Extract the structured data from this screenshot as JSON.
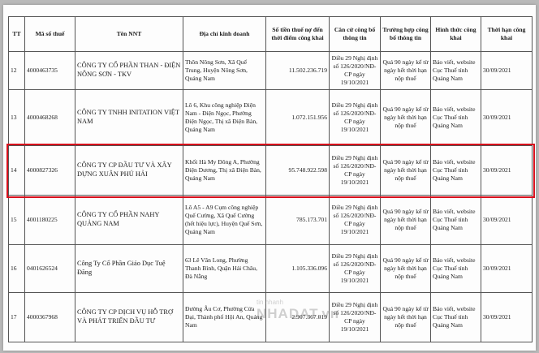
{
  "table": {
    "header": [
      "TT",
      "Mã số thuế",
      "Tên NNT",
      "Địa chỉ kinh doanh",
      "Số tiền thuế nợ đến thời điểm công khai",
      "Căn cứ công bố thông tin",
      "Trường hợp công bố thông tin",
      "Hình thức công khai",
      "Thời hạn công khai"
    ],
    "rows": [
      [
        "12",
        "4000463735",
        "CÔNG TY CỔ PHẦN THAN - ĐIỆN NÔNG SƠN - TKV",
        "Thôn Nông Sơn, Xã Quế Trung, Huyện Nông Sơn, Quảng Nam",
        "11.502.236.719",
        "Điều 29 Nghị định số 126/2020/NĐ-CP ngày 19/10/2021",
        "Quá 90 ngày kể từ ngày hết thời hạn nộp thuế",
        "Báo viết, website Cục Thuế tỉnh Quảng Nam",
        "30/09/2021"
      ],
      [
        "13",
        "4000468268",
        "CÔNG TY TNHH INITATION VIỆT NAM",
        "Lô 6, Khu công nghiệp Điện Nam - Điện Ngọc, Phường Điện Ngọc, Thị xã Điện Bàn, Quảng Nam",
        "1.072.151.956",
        "Điều 29 Nghị định số 126/2020/NĐ-CP ngày 19/10/2021",
        "Quá 90 ngày kể từ ngày hết thời hạn nộp thuế",
        "Báo viết, website Cục Thuế tỉnh Quảng Nam",
        "30/09/2021"
      ],
      [
        "14",
        "4000827326",
        "CÔNG TY CP ĐẦU TƯ VÀ XÂY DỰNG XUÂN PHÚ HẢI",
        "Khối Hà My Đông A, Phường Điện Dương, Thị xã Điện Bàn, Quảng Nam",
        "95.748.922.598",
        "Điều 29 Nghị định số 126/2020/NĐ-CP ngày 19/10/2021",
        "Quá 90 ngày kể từ ngày hết thời hạn nộp thuế",
        "Báo viết, website Cục Thuế tỉnh Quảng Nam",
        "30/09/2021"
      ],
      [
        "15",
        "4001180225",
        "CÔNG TY CỔ PHẦN NAHY QUẢNG NAM",
        "Lô A5 - A9 Cụm công nghiệp Quế Cường, Xã Quế Cường (hết hiệu lực), Huyện Quế Sơn, Quảng Nam",
        "785.173.701",
        "Điều 29 Nghị định số 126/2020/NĐ-CP ngày 19/10/2021",
        "Quá 90 ngày kể từ ngày hết thời hạn nộp thuế",
        "Báo viết, website Cục Thuế tỉnh Quảng Nam",
        "30/09/2021"
      ],
      [
        "16",
        "0401626524",
        "Công Ty Cổ Phần Giáo Dục Tuệ Đăng",
        "63 Lê Văn Long, Phường Thanh Bình, Quận Hải Châu, Đà Nẵng",
        "1.105.336.096",
        "Điều 29 Nghị định số 126/2020/NĐ-CP ngày 19/10/2021",
        "Quá 90 ngày kể từ ngày hết thời hạn nộp thuế",
        "Báo viết, website Cục Thuế tỉnh Quảng Nam",
        "30/09/2021"
      ],
      [
        "17",
        "4000367968",
        "CÔNG TY CP DỊCH VỤ HỖ TRỢ VÀ PHÁT TRIỂN ĐẦU TƯ",
        "Đường Âu Cơ, Phường Cửa Đại, Thành phố Hội An, Quảng Nam",
        "2.907.367.019",
        "Điều 29 Nghị định số 126/2020/NĐ-CP ngày 19/10/2021",
        "Quá 90 ngày kể từ ngày hết thời hạn nộp thuế",
        "Báo viết, website Cục Thuế tỉnh Quảng Nam",
        "30/09/2021"
      ]
    ]
  },
  "watermark": {
    "top": "tin nhanh",
    "brand": "NHADAT.vn"
  }
}
